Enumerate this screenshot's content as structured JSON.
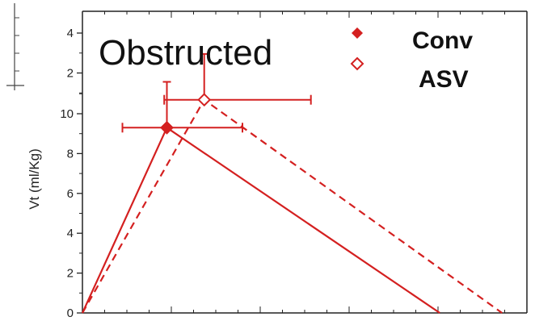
{
  "chart_data": {
    "type": "line",
    "title": "",
    "xlabel": "",
    "ylabel": "Vt (ml/Kg)",
    "ylim": [
      0,
      12.5
    ],
    "yticks_main": [
      0,
      2,
      4,
      6,
      8,
      10
    ],
    "ylim_inset": [
      0,
      5
    ],
    "yticks_inset": [
      2,
      4
    ],
    "xlim": [
      0,
      5
    ],
    "annotation": "Obstructed",
    "legend": {
      "placement": "top-right"
    },
    "series": [
      {
        "name": "Conv",
        "style": "solid",
        "marker": "filled-diamond",
        "color": "#d42020",
        "x": [
          0,
          0.95,
          4.02
        ],
        "y": [
          0,
          9.3,
          0
        ],
        "peak_error": {
          "x_minus": 0.5,
          "x_plus": 0.85,
          "y_plus": 2.3
        }
      },
      {
        "name": "ASV",
        "style": "dashed",
        "marker": "open-diamond",
        "color": "#d42020",
        "x": [
          0,
          1.37,
          4.72
        ],
        "y": [
          0,
          10.7,
          0
        ],
        "peak_error": {
          "x_minus": 0.45,
          "x_plus": 1.2,
          "y_plus": 2.3
        }
      }
    ]
  }
}
